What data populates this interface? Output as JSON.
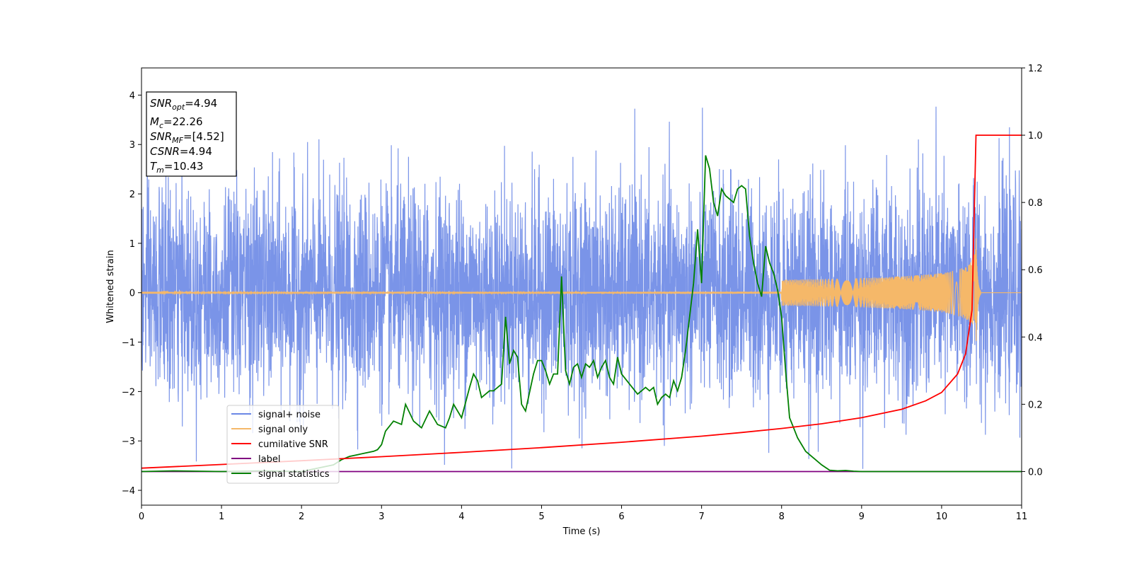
{
  "chart_data": {
    "type": "line",
    "xlabel": "Time (s)",
    "ylabel": "Whitened strain",
    "xlim": [
      0,
      11
    ],
    "ylim": [
      -4.3,
      4.55
    ],
    "y2lim": [
      -0.1,
      1.2
    ],
    "x_ticks": [
      "0",
      "1",
      "2",
      "3",
      "4",
      "5",
      "6",
      "7",
      "8",
      "9",
      "10",
      "11"
    ],
    "y_ticks": [
      "4",
      "3",
      "2",
      "1",
      "0",
      "−1",
      "−2",
      "−3",
      "−4"
    ],
    "y_tick_values": [
      4,
      3,
      2,
      1,
      0,
      -1,
      -2,
      -3,
      -4
    ],
    "y2_ticks": [
      "1.2",
      "1.0",
      "0.8",
      "0.6",
      "0.4",
      "0.2",
      "0.0"
    ],
    "y2_tick_values": [
      1.2,
      1.0,
      0.8,
      0.6,
      0.4,
      0.2,
      0.0
    ],
    "grid": false,
    "legend_position": "lower-left",
    "info_box": {
      "snr_opt": "=4.94",
      "mc": "=22.26",
      "snr_mf": "=[4.52]",
      "csnr": "=4.94",
      "tm": "=10.43"
    },
    "colors": {
      "noise": "#6b88e6",
      "signal": "#f5b869",
      "cum_snr": "#ff0000",
      "label": "#800080",
      "stat": "#008000"
    },
    "series": [
      {
        "name": "signal+ noise",
        "axis": "left",
        "description_values": "whitened noise, roughly N(0,1), peaks near ±4",
        "sample_rate_hz": 400
      },
      {
        "name": "signal only",
        "axis": "left",
        "merger_time": 10.43,
        "peak_amplitude": 1.1
      },
      {
        "name": "cumilative SNR",
        "axis": "right",
        "x": [
          0,
          1,
          2,
          3,
          4,
          5,
          6,
          7,
          7.5,
          8,
          8.5,
          9,
          9.5,
          9.8,
          10,
          10.2,
          10.3,
          10.38,
          10.43,
          11
        ],
        "y": [
          0.01,
          0.021,
          0.032,
          0.044,
          0.057,
          0.071,
          0.087,
          0.105,
          0.116,
          0.128,
          0.142,
          0.16,
          0.185,
          0.21,
          0.235,
          0.29,
          0.35,
          0.48,
          1.0,
          1.0
        ]
      },
      {
        "name": "label",
        "axis": "right",
        "x": [
          0,
          11
        ],
        "y": [
          0,
          0
        ]
      },
      {
        "name": "signal statistics",
        "axis": "right",
        "x": [
          0,
          0.4,
          1,
          1.5,
          2,
          2.2,
          2.4,
          2.5,
          2.6,
          2.7,
          2.8,
          2.9,
          2.95,
          3.0,
          3.05,
          3.15,
          3.25,
          3.3,
          3.4,
          3.5,
          3.6,
          3.7,
          3.8,
          3.85,
          3.9,
          4.0,
          4.1,
          4.15,
          4.2,
          4.25,
          4.3,
          4.35,
          4.4,
          4.5,
          4.55,
          4.6,
          4.65,
          4.7,
          4.75,
          4.8,
          4.9,
          4.95,
          5.0,
          5.05,
          5.1,
          5.15,
          5.2,
          5.25,
          5.3,
          5.35,
          5.4,
          5.45,
          5.5,
          5.55,
          5.6,
          5.65,
          5.7,
          5.75,
          5.8,
          5.85,
          5.9,
          5.95,
          6.0,
          6.1,
          6.2,
          6.3,
          6.35,
          6.4,
          6.45,
          6.5,
          6.55,
          6.6,
          6.65,
          6.7,
          6.75,
          6.8,
          6.85,
          6.9,
          6.95,
          7.0,
          7.05,
          7.1,
          7.15,
          7.2,
          7.25,
          7.3,
          7.4,
          7.45,
          7.5,
          7.55,
          7.6,
          7.65,
          7.7,
          7.75,
          7.8,
          7.85,
          7.9,
          7.95,
          8.0,
          8.05,
          8.1,
          8.15,
          8.2,
          8.25,
          8.3,
          8.4,
          8.5,
          8.6,
          8.7,
          8.8,
          8.9,
          9.0,
          9.5,
          10,
          11
        ],
        "y": [
          0,
          0.002,
          0,
          0.002,
          0,
          0.01,
          0.02,
          0.035,
          0.045,
          0.05,
          0.055,
          0.06,
          0.065,
          0.08,
          0.12,
          0.15,
          0.14,
          0.2,
          0.15,
          0.13,
          0.18,
          0.14,
          0.13,
          0.16,
          0.2,
          0.16,
          0.25,
          0.29,
          0.27,
          0.22,
          0.23,
          0.24,
          0.24,
          0.26,
          0.46,
          0.32,
          0.36,
          0.34,
          0.2,
          0.18,
          0.29,
          0.33,
          0.33,
          0.3,
          0.26,
          0.29,
          0.29,
          0.58,
          0.3,
          0.26,
          0.31,
          0.32,
          0.28,
          0.32,
          0.31,
          0.33,
          0.28,
          0.31,
          0.33,
          0.28,
          0.26,
          0.34,
          0.29,
          0.26,
          0.23,
          0.25,
          0.24,
          0.25,
          0.2,
          0.22,
          0.23,
          0.22,
          0.27,
          0.24,
          0.28,
          0.36,
          0.46,
          0.56,
          0.72,
          0.56,
          0.94,
          0.9,
          0.8,
          0.76,
          0.84,
          0.82,
          0.8,
          0.84,
          0.85,
          0.84,
          0.7,
          0.62,
          0.56,
          0.52,
          0.67,
          0.62,
          0.59,
          0.54,
          0.46,
          0.3,
          0.16,
          0.13,
          0.1,
          0.08,
          0.06,
          0.04,
          0.02,
          0.004,
          0.002,
          0.003,
          0.001,
          0,
          0,
          0,
          0
        ]
      }
    ]
  }
}
